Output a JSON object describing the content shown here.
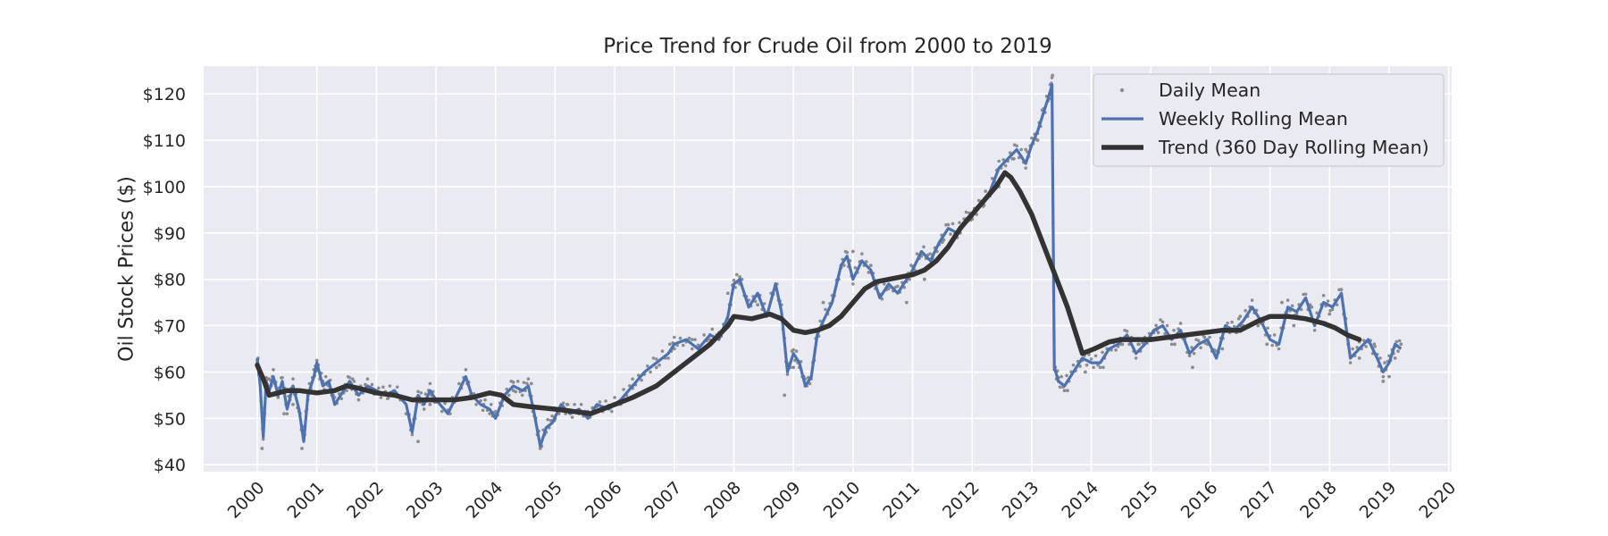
{
  "chart_data": {
    "type": "line",
    "title": "Price Trend for Crude Oil from 2000 to 2019",
    "xlabel": "",
    "ylabel": "Oil Stock Prices ($)",
    "ylim": [
      38.5,
      126
    ],
    "xlim": [
      1999.1,
      2020.05
    ],
    "y_ticks": [
      40,
      50,
      60,
      70,
      80,
      90,
      100,
      110,
      120
    ],
    "y_tick_labels": [
      "$40",
      "$50",
      "$60",
      "$70",
      "$80",
      "$90",
      "$100",
      "$110",
      "$120"
    ],
    "x_ticks": [
      2000,
      2001,
      2002,
      2003,
      2004,
      2005,
      2006,
      2007,
      2008,
      2009,
      2010,
      2011,
      2012,
      2013,
      2014,
      2015,
      2016,
      2017,
      2018,
      2019,
      2020
    ],
    "x_tick_labels": [
      "2000",
      "2001",
      "2002",
      "2003",
      "2004",
      "2005",
      "2006",
      "2007",
      "2008",
      "2009",
      "2010",
      "2011",
      "2012",
      "2013",
      "2014",
      "2015",
      "2016",
      "2017",
      "2018",
      "2019",
      "2020"
    ],
    "grid": true,
    "legend_position": "top-right",
    "colors": {
      "plot_bg": "#eaeaf2",
      "grid": "#ffffff",
      "daily": "#8c8c8c",
      "weekly": "#4c72b0",
      "trend": "#333333",
      "text": "#262626"
    },
    "series": [
      {
        "name": "Daily Mean",
        "style": "points",
        "x": [
          2000.0,
          2000.08,
          2000.15,
          2000.2,
          2000.3,
          2000.45,
          2000.6,
          2000.75,
          2000.85,
          2001.0,
          2001.1,
          2001.3,
          2001.6,
          2001.9,
          2002.2,
          2002.5,
          2002.7,
          2002.9,
          2003.2,
          2003.5,
          2003.8,
          2004.0,
          2004.3,
          2004.6,
          2004.75,
          2005.0,
          2005.2,
          2005.5,
          2005.9,
          2006.3,
          2006.7,
          2007.0,
          2007.3,
          2007.6,
          2007.9,
          2008.1,
          2008.4,
          2008.7,
          2008.85,
          2009.0,
          2009.2,
          2009.5,
          2009.8,
          2010.0,
          2010.3,
          2010.6,
          2010.9,
          2011.2,
          2011.5,
          2011.8,
          2012.0,
          2012.2,
          2012.45,
          2012.7,
          2012.9,
          2013.1,
          2013.3,
          2013.35,
          2013.45,
          2013.6,
          2013.9,
          2014.2,
          2014.5,
          2014.8,
          2015.1,
          2015.4,
          2015.7,
          2015.9,
          2016.2,
          2016.5,
          2016.8,
          2016.95,
          2017.2,
          2017.4,
          2017.7,
          2018.0,
          2018.2,
          2018.5,
          2018.75,
          2018.9,
          2019.0,
          2019.1,
          2019.2
        ],
        "values": [
          62.5,
          43.5,
          56,
          58.5,
          57.5,
          51,
          53,
          43.5,
          55,
          62.5,
          58,
          56,
          58.5,
          56.5,
          54.5,
          51,
          45,
          53,
          51.5,
          58.5,
          53,
          51,
          56,
          57.5,
          43.5,
          50,
          53,
          51.5,
          52.5,
          56.5,
          61,
          65,
          67,
          68,
          77,
          80.5,
          74.5,
          79,
          55,
          61,
          57,
          75,
          83,
          86,
          83,
          78,
          75,
          80,
          88,
          90,
          93,
          96,
          100,
          106,
          108,
          110,
          120,
          124,
          58,
          56,
          60,
          61,
          66,
          66,
          69,
          66,
          61,
          67.5,
          65,
          72,
          70,
          66,
          75,
          70,
          74,
          72.5,
          76.5,
          63,
          66,
          58,
          59,
          63,
          66
        ]
      },
      {
        "name": "Weekly Rolling Mean",
        "style": "line",
        "x": [
          2000.0,
          2000.05,
          2000.1,
          2000.15,
          2000.2,
          2000.27,
          2000.35,
          2000.42,
          2000.5,
          2000.6,
          2000.7,
          2000.78,
          2000.85,
          2000.95,
          2001.0,
          2001.1,
          2001.2,
          2001.3,
          2001.45,
          2001.55,
          2001.7,
          2001.85,
          2002.0,
          2002.15,
          2002.3,
          2002.5,
          2002.6,
          2002.7,
          2002.8,
          2002.9,
          2003.0,
          2003.2,
          2003.35,
          2003.5,
          2003.6,
          2003.75,
          2003.9,
          2004.0,
          2004.15,
          2004.3,
          2004.45,
          2004.55,
          2004.65,
          2004.75,
          2004.85,
          2004.95,
          2005.1,
          2005.25,
          2005.4,
          2005.55,
          2005.7,
          2005.9,
          2006.1,
          2006.3,
          2006.5,
          2006.7,
          2006.9,
          2007.0,
          2007.2,
          2007.4,
          2007.6,
          2007.75,
          2007.9,
          2008.0,
          2008.1,
          2008.25,
          2008.4,
          2008.55,
          2008.7,
          2008.8,
          2008.9,
          2009.0,
          2009.1,
          2009.2,
          2009.3,
          2009.4,
          2009.5,
          2009.65,
          2009.8,
          2009.9,
          2010.0,
          2010.15,
          2010.3,
          2010.45,
          2010.6,
          2010.75,
          2010.9,
          2011.0,
          2011.15,
          2011.3,
          2011.45,
          2011.6,
          2011.75,
          2011.9,
          2012.0,
          2012.15,
          2012.3,
          2012.45,
          2012.6,
          2012.75,
          2012.9,
          2013.0,
          2013.1,
          2013.2,
          2013.3,
          2013.34,
          2013.38,
          2013.45,
          2013.55,
          2013.7,
          2013.85,
          2014.0,
          2014.15,
          2014.3,
          2014.45,
          2014.6,
          2014.75,
          2014.9,
          2015.05,
          2015.2,
          2015.35,
          2015.5,
          2015.65,
          2015.8,
          2015.95,
          2016.1,
          2016.25,
          2016.4,
          2016.55,
          2016.7,
          2016.85,
          2017.0,
          2017.15,
          2017.3,
          2017.45,
          2017.6,
          2017.75,
          2017.9,
          2018.05,
          2018.2,
          2018.35,
          2018.5,
          2018.65,
          2018.8,
          2018.9,
          2019.0,
          2019.1,
          2019.2
        ],
        "values": [
          63,
          57,
          46,
          58,
          56,
          59,
          55,
          58,
          52,
          57,
          52,
          45,
          55,
          59,
          62,
          57,
          58,
          53,
          56,
          58,
          55,
          57,
          56,
          55,
          56,
          53,
          47,
          55,
          53,
          56,
          54,
          51,
          55,
          59,
          55,
          53,
          52,
          50,
          55,
          57,
          56,
          57,
          51,
          44,
          48,
          49,
          53,
          51,
          52,
          50,
          53,
          52,
          54,
          57,
          60,
          62,
          64,
          66,
          67,
          65,
          68,
          67,
          72,
          79,
          80,
          74,
          77,
          72,
          79,
          73,
          60,
          64,
          62,
          57,
          59,
          68,
          71,
          75,
          83,
          85,
          80,
          84,
          82,
          76,
          79,
          77,
          80,
          82,
          86,
          84,
          88,
          91,
          90,
          93,
          94,
          96,
          99,
          104,
          106,
          108,
          105,
          109,
          112,
          116,
          120,
          122,
          61,
          58,
          57,
          60,
          63,
          62,
          62,
          65,
          66,
          68,
          64,
          66,
          69,
          70,
          67,
          69,
          64,
          66,
          67,
          63,
          70,
          69,
          71,
          74,
          71,
          67,
          66,
          74,
          73,
          76,
          70,
          75,
          74,
          77,
          63,
          65,
          67,
          63,
          60,
          62,
          66,
          65
        ],
        "daily_offsets": [
          -1,
          1.5,
          -0.5,
          0.8
        ]
      },
      {
        "name": "Trend (360 Day Rolling Mean)",
        "style": "line",
        "x": [
          2000.0,
          2000.1,
          2000.2,
          2000.35,
          2000.5,
          2000.7,
          2001.0,
          2001.3,
          2001.5,
          2001.7,
          2002.0,
          2002.3,
          2002.6,
          2003.0,
          2003.3,
          2003.6,
          2003.9,
          2004.1,
          2004.3,
          2004.6,
          2005.0,
          2005.3,
          2005.6,
          2006.0,
          2006.3,
          2006.7,
          2007.0,
          2007.3,
          2007.6,
          2007.9,
          2008.0,
          2008.3,
          2008.6,
          2008.8,
          2009.0,
          2009.2,
          2009.4,
          2009.6,
          2009.8,
          2010.0,
          2010.2,
          2010.4,
          2010.6,
          2010.8,
          2011.0,
          2011.2,
          2011.4,
          2011.6,
          2011.8,
          2012.0,
          2012.2,
          2012.4,
          2012.55,
          2012.65,
          2012.8,
          2013.0,
          2013.3,
          2013.6,
          2013.85,
          2014.05,
          2014.3,
          2014.5,
          2014.8,
          2015.0,
          2015.3,
          2015.6,
          2015.9,
          2016.2,
          2016.5,
          2016.8,
          2017.0,
          2017.3,
          2017.6,
          2017.9,
          2018.1,
          2018.3,
          2018.5
        ],
        "values": [
          61.5,
          58.5,
          55,
          55.5,
          56,
          56,
          55.5,
          56,
          57,
          56.5,
          55.5,
          55,
          54,
          54,
          54,
          54.5,
          55.5,
          55,
          53,
          52.5,
          52,
          51.5,
          51,
          53,
          54.5,
          57,
          60,
          63,
          66,
          70,
          72,
          71.5,
          72.5,
          71.5,
          69,
          68.5,
          69,
          70,
          72,
          75,
          78,
          79.5,
          80,
          80.5,
          81,
          82,
          84,
          87,
          91,
          94,
          97,
          100,
          103,
          102,
          99,
          94,
          84,
          74,
          64,
          65,
          66.5,
          67,
          67,
          67,
          67.5,
          68,
          68.5,
          69,
          69,
          71,
          72,
          72,
          71.5,
          70.5,
          69.5,
          68,
          67
        ]
      }
    ]
  }
}
